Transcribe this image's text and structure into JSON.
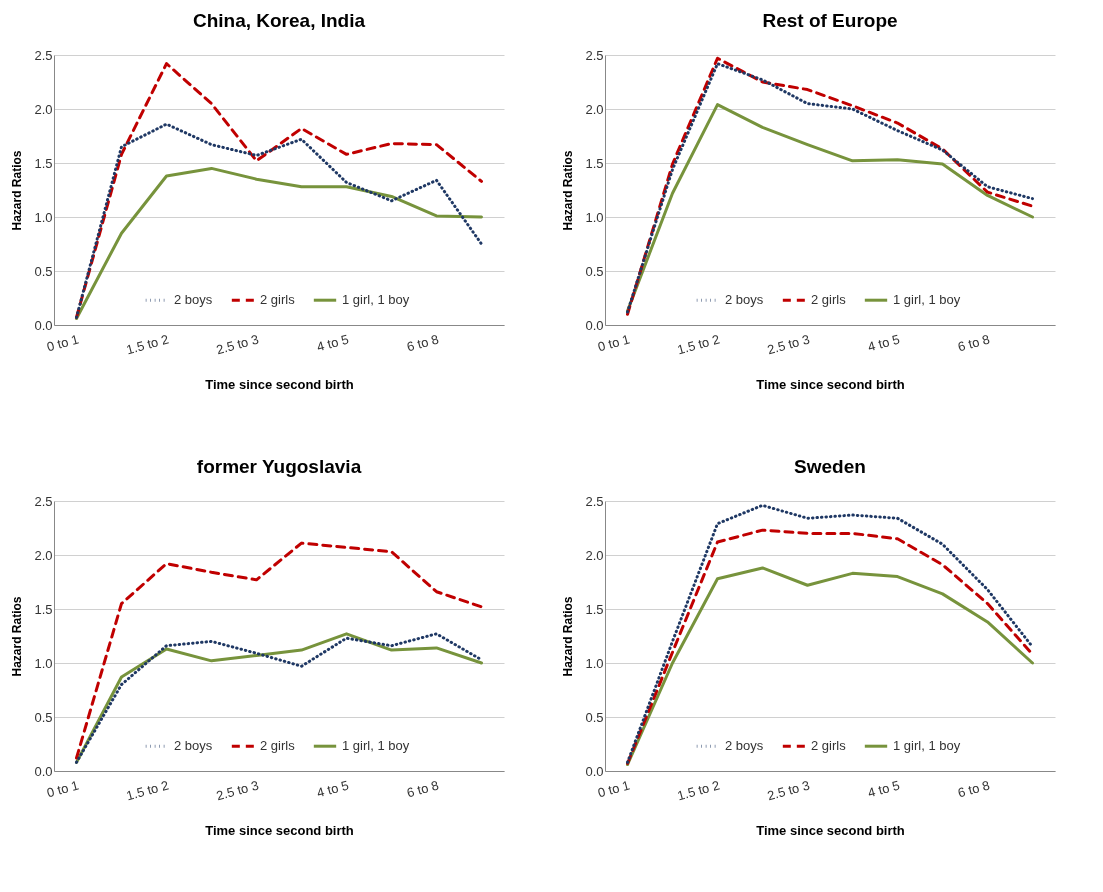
{
  "chart_data": [
    {
      "type": "line",
      "title": "China, Korea, India",
      "xlabel": "Time since second birth",
      "ylabel": "Hazard Ratios",
      "categories": [
        "0 to 1",
        null,
        "1.5 to 2",
        null,
        "2.5 to 3",
        null,
        "4 to 5",
        null,
        "6 to 8",
        null
      ],
      "ylim": [
        0,
        2.5
      ],
      "yticks": [
        {
          "value": 0,
          "label": "0.0"
        },
        0.5,
        {
          "value": 1,
          "label": "1.0"
        },
        1.5,
        {
          "value": 2,
          "label": "2.0"
        },
        2.5
      ],
      "grid": "y",
      "legend": "bottom",
      "series": [
        {
          "name": "2 boys",
          "color": "#1f3864",
          "line_style": "dotted",
          "values": [
            0.07,
            1.65,
            1.86,
            1.67,
            1.57,
            1.72,
            1.32,
            1.15,
            1.34,
            0.75
          ]
        },
        {
          "name": "2 girls",
          "color": "#c00000",
          "line_style": "dashed",
          "values": [
            0.07,
            1.58,
            2.42,
            2.05,
            1.52,
            1.82,
            1.58,
            1.68,
            1.67,
            1.33
          ]
        },
        {
          "name": "1 girl, 1 boy",
          "color": "#77933c",
          "line_style": "solid",
          "values": [
            0.06,
            0.85,
            1.38,
            1.45,
            1.35,
            1.28,
            1.28,
            1.19,
            1.01,
            1.0
          ]
        }
      ]
    },
    {
      "type": "line",
      "title": "Rest of Europe",
      "xlabel": "Time since second birth",
      "ylabel": "Hazard Ratios",
      "categories": [
        "0 to 1",
        null,
        "1.5 to 2",
        null,
        "2.5 to 3",
        null,
        "4 to 5",
        null,
        "6 to 8",
        null
      ],
      "ylim": [
        0,
        2.5
      ],
      "yticks": [
        {
          "value": 0,
          "label": "0.0"
        },
        0.5,
        {
          "value": 1,
          "label": "1.0"
        },
        1.5,
        {
          "value": 2,
          "label": "2.0"
        },
        2.5
      ],
      "grid": "y",
      "legend": "bottom",
      "series": [
        {
          "name": "2 boys",
          "color": "#1f3864",
          "line_style": "dotted",
          "values": [
            0.12,
            1.44,
            2.42,
            2.27,
            2.05,
            2.0,
            1.8,
            1.62,
            1.28,
            1.17
          ]
        },
        {
          "name": "2 girls",
          "color": "#c00000",
          "line_style": "dashed",
          "values": [
            0.1,
            1.49,
            2.47,
            2.25,
            2.18,
            2.03,
            1.87,
            1.63,
            1.23,
            1.1
          ]
        },
        {
          "name": "1 girl, 1 boy",
          "color": "#77933c",
          "line_style": "solid",
          "values": [
            0.13,
            1.22,
            2.04,
            1.83,
            1.67,
            1.52,
            1.53,
            1.49,
            1.2,
            1.0
          ]
        }
      ]
    },
    {
      "type": "line",
      "title": "former Yugoslavia",
      "xlabel": "Time since second birth",
      "ylabel": "Hazard Ratios",
      "categories": [
        "0 to 1",
        null,
        "1.5 to 2",
        null,
        "2.5 to 3",
        null,
        "4 to 5",
        null,
        "6 to 8",
        null
      ],
      "ylim": [
        0,
        2.5
      ],
      "yticks": [
        {
          "value": 0,
          "label": "0.0"
        },
        0.5,
        {
          "value": 1,
          "label": "1.0"
        },
        1.5,
        {
          "value": 2,
          "label": "2.0"
        },
        2.5
      ],
      "grid": "y",
      "legend": "bottom",
      "series": [
        {
          "name": "2 boys",
          "color": "#1f3864",
          "line_style": "dotted",
          "values": [
            0.08,
            0.8,
            1.16,
            1.2,
            1.09,
            0.97,
            1.23,
            1.16,
            1.27,
            1.03
          ]
        },
        {
          "name": "2 girls",
          "color": "#c00000",
          "line_style": "dashed",
          "values": [
            0.12,
            1.55,
            1.92,
            1.84,
            1.77,
            2.11,
            2.07,
            2.03,
            1.66,
            1.52
          ]
        },
        {
          "name": "1 girl, 1 boy",
          "color": "#77933c",
          "line_style": "solid",
          "values": [
            0.08,
            0.87,
            1.13,
            1.02,
            1.07,
            1.12,
            1.27,
            1.12,
            1.14,
            1.0
          ]
        }
      ]
    },
    {
      "type": "line",
      "title": "Sweden",
      "xlabel": "Time since second birth",
      "ylabel": "Hazard Ratios",
      "categories": [
        "0 to 1",
        null,
        "1.5 to 2",
        null,
        "2.5 to 3",
        null,
        "4 to 5",
        null,
        "6 to 8",
        null
      ],
      "ylim": [
        0,
        2.5
      ],
      "yticks": [
        {
          "value": 0,
          "label": "0.0"
        },
        0.5,
        {
          "value": 1,
          "label": "1.0"
        },
        1.5,
        {
          "value": 2,
          "label": "2.0"
        },
        2.5
      ],
      "grid": "y",
      "legend": "bottom",
      "series": [
        {
          "name": "2 boys",
          "color": "#1f3864",
          "line_style": "dotted",
          "values": [
            0.08,
            1.2,
            2.29,
            2.46,
            2.34,
            2.37,
            2.34,
            2.1,
            1.68,
            1.15
          ]
        },
        {
          "name": "2 girls",
          "color": "#c00000",
          "line_style": "dashed",
          "values": [
            0.07,
            1.1,
            2.12,
            2.23,
            2.2,
            2.2,
            2.15,
            1.91,
            1.55,
            1.08
          ]
        },
        {
          "name": "1 girl, 1 boy",
          "color": "#77933c",
          "line_style": "solid",
          "values": [
            0.06,
            1.0,
            1.78,
            1.88,
            1.72,
            1.83,
            1.8,
            1.64,
            1.38,
            1.0
          ]
        }
      ]
    }
  ]
}
